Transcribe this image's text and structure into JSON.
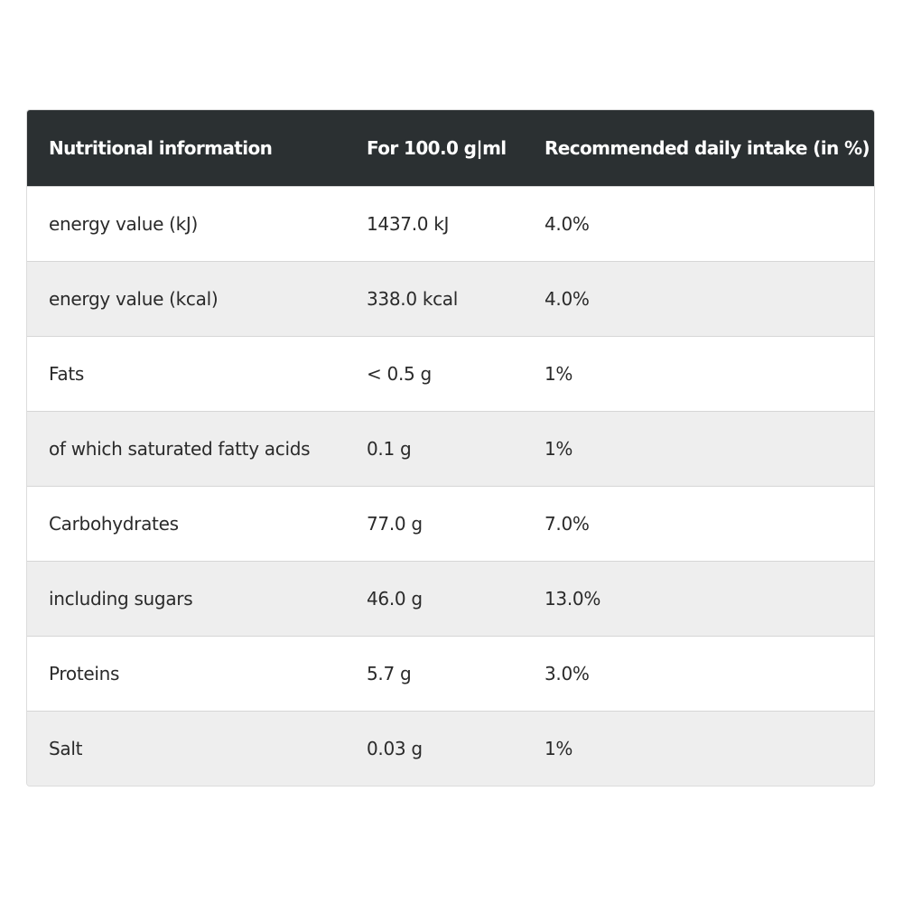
{
  "table": {
    "headers": [
      "Nutritional information",
      "For 100.0 g|ml",
      "Recommended daily intake (in %)"
    ],
    "rows": [
      [
        "energy value (kJ)",
        "1437.0 kJ",
        "4.0%"
      ],
      [
        "energy value (kcal)",
        "338.0 kcal",
        "4.0%"
      ],
      [
        "Fats",
        "< 0.5 g",
        "1%"
      ],
      [
        "of which saturated fatty acids",
        "0.1 g",
        "1%"
      ],
      [
        "Carbohydrates",
        "77.0 g",
        "7.0%"
      ],
      [
        "including sugars",
        "46.0 g",
        "13.0%"
      ],
      [
        "Proteins",
        "5.7 g",
        "3.0%"
      ],
      [
        "Salt",
        "0.03 g",
        "1%"
      ]
    ]
  }
}
